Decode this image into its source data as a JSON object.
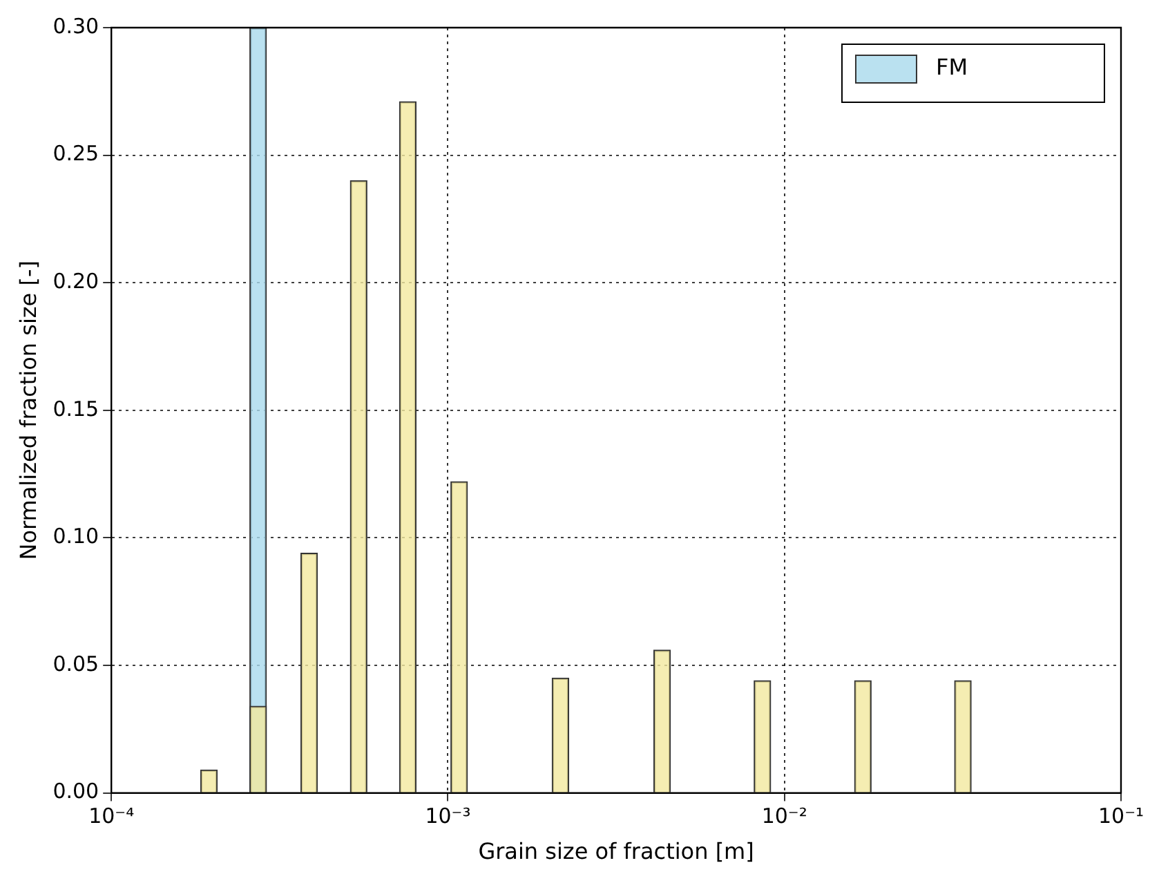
{
  "chart_data": {
    "type": "bar",
    "xlabel": "Grain size of fraction [m]",
    "ylabel": "Normalized fraction size [-]",
    "log": "x",
    "xlim": [
      0.0001,
      0.1
    ],
    "xticks": [
      {
        "value": 0.0001,
        "label": "10⁻⁴"
      },
      {
        "value": 0.001,
        "label": "10⁻³"
      },
      {
        "value": 0.01,
        "label": "10⁻²"
      },
      {
        "value": 0.1,
        "label": "10⁻¹"
      }
    ],
    "ylim": [
      0,
      0.3
    ],
    "yticks": [
      {
        "value": 0,
        "label": "0.00"
      },
      {
        "value": 0.05,
        "label": "0.05"
      },
      {
        "value": 0.1,
        "label": "0.10"
      },
      {
        "value": 0.15,
        "label": "0.15"
      },
      {
        "value": 0.2,
        "label": "0.20"
      },
      {
        "value": 0.25,
        "label": "0.25"
      },
      {
        "value": 0.3,
        "label": "0.30"
      }
    ],
    "grid": true,
    "line_style": "dotted",
    "legend": "top right",
    "series": [
      {
        "name": "FM",
        "color": "#a9d9ec",
        "x": [
          0.000273
        ],
        "values": [
          0.3
        ]
      },
      {
        "color": "#f3e99f",
        "x": [
          0.000195,
          0.000273,
          0.000387,
          0.000543,
          0.00076,
          0.00108,
          0.00216,
          0.00433,
          0.0086,
          0.0171,
          0.0339
        ],
        "values": [
          0.009,
          0.034,
          0.094,
          0.24,
          0.271,
          0.122,
          0.045,
          0.056,
          0.044,
          0.044,
          0.044
        ]
      }
    ]
  }
}
